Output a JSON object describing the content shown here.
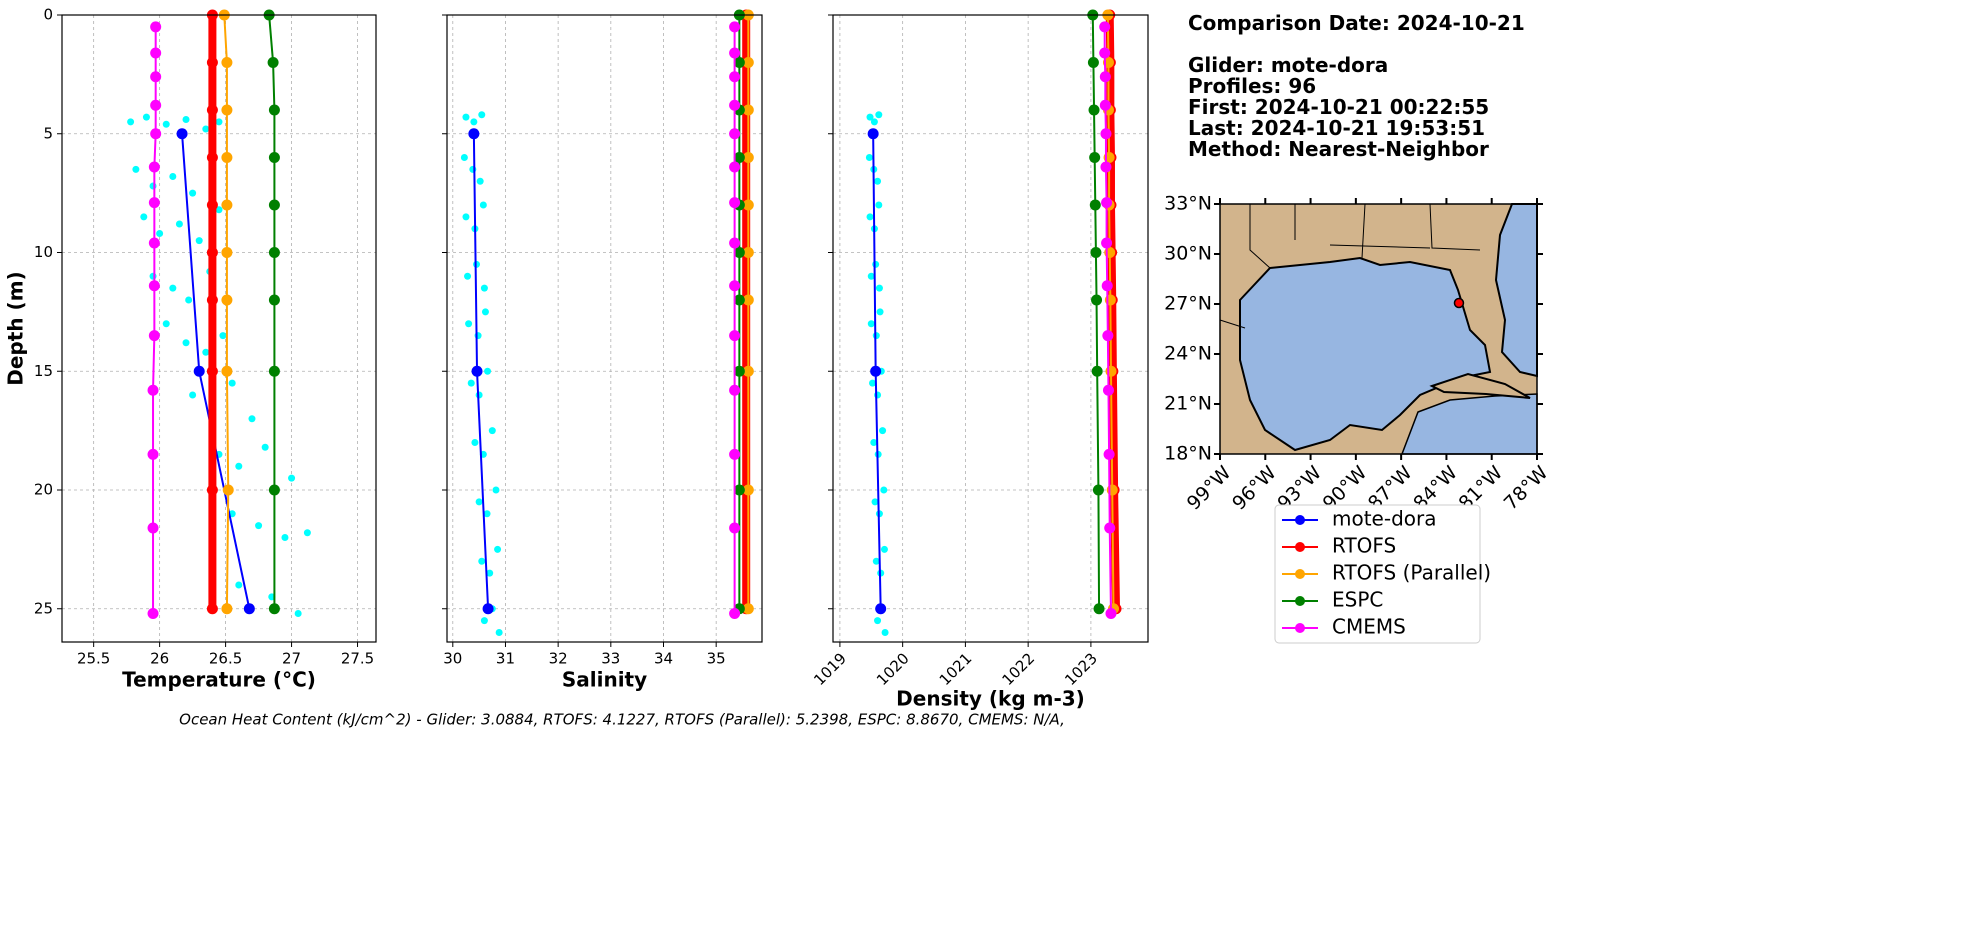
{
  "info": {
    "lines": [
      "Comparison Date: 2024-10-21",
      "Glider: mote-dora",
      "Profiles: 96",
      "First: 2024-10-21 00:22:55",
      "Last: 2024-10-21 19:53:51",
      "Method: Nearest-Neighbor"
    ]
  },
  "footer": "Ocean Heat Content (kJ/cm^2) - Glider: 3.0884,  RTOFS: 4.1227,  RTOFS (Parallel): 5.2398,  ESPC: 8.8670,  CMEMS: N/A,",
  "chart_data": [
    {
      "type": "line",
      "xlabel": "Temperature (°C)",
      "ylabel": "Depth (m)",
      "grid": true,
      "yinvert": true,
      "xlim": [
        25.26,
        27.64
      ],
      "xticks": [
        25.5,
        26.0,
        26.5,
        27.0,
        27.5
      ],
      "ylim": [
        0,
        26.4
      ],
      "yticks": [
        0,
        5,
        10,
        15,
        20,
        25
      ],
      "scatter": {
        "color": "#00ffff",
        "x": [
          25.78,
          25.9,
          26.05,
          26.2,
          26.35,
          26.45,
          25.82,
          25.95,
          26.1,
          26.25,
          26.4,
          25.88,
          26.0,
          26.15,
          26.3,
          26.45,
          25.95,
          26.1,
          26.22,
          26.38,
          26.05,
          26.2,
          26.35,
          26.48,
          26.25,
          26.4,
          26.55,
          26.7,
          26.45,
          26.6,
          26.8,
          27.0,
          26.55,
          26.75,
          26.95,
          27.12,
          26.6,
          26.85,
          27.05
        ],
        "y": [
          4.5,
          4.3,
          4.6,
          4.4,
          4.8,
          4.5,
          6.5,
          7.2,
          6.8,
          7.5,
          6.2,
          8.5,
          9.2,
          8.8,
          9.5,
          8.2,
          11,
          11.5,
          12,
          10.8,
          13,
          13.8,
          14.2,
          13.5,
          16,
          16.5,
          15.5,
          17,
          18.5,
          19,
          18.2,
          19.5,
          21,
          21.5,
          22,
          21.8,
          24,
          24.5,
          25.2
        ]
      },
      "series": [
        {
          "name": "mote-dora",
          "color": "#0000ff",
          "linewidth": 2,
          "depths": [
            5,
            15,
            25
          ],
          "values": [
            26.17,
            26.3,
            26.68
          ]
        },
        {
          "name": "RTOFS",
          "color": "#ff0000",
          "linewidth": 8,
          "depths": [
            0,
            2,
            4,
            6,
            8,
            10,
            12,
            15,
            20,
            25
          ],
          "values": [
            26.4,
            26.4,
            26.4,
            26.4,
            26.4,
            26.4,
            26.4,
            26.4,
            26.4,
            26.4
          ]
        },
        {
          "name": "RTOFS (Parallel)",
          "color": "#ffa500",
          "linewidth": 2,
          "depths": [
            0,
            2,
            4,
            6,
            8,
            10,
            12,
            15,
            20,
            25
          ],
          "values": [
            26.49,
            26.51,
            26.51,
            26.51,
            26.51,
            26.51,
            26.51,
            26.51,
            26.52,
            26.51
          ]
        },
        {
          "name": "ESPC",
          "color": "#008000",
          "linewidth": 2,
          "depths": [
            0,
            2,
            4,
            6,
            8,
            10,
            12,
            15,
            20,
            25
          ],
          "values": [
            26.83,
            26.86,
            26.87,
            26.87,
            26.87,
            26.87,
            26.87,
            26.87,
            26.87,
            26.87
          ]
        },
        {
          "name": "CMEMS",
          "color": "#ff00ff",
          "linewidth": 2,
          "depths": [
            0.5,
            1.6,
            2.6,
            3.8,
            5,
            6.4,
            7.9,
            9.6,
            11.4,
            13.5,
            15.8,
            18.5,
            21.6,
            25.2
          ],
          "values": [
            25.97,
            25.97,
            25.97,
            25.97,
            25.97,
            25.96,
            25.96,
            25.96,
            25.96,
            25.96,
            25.95,
            25.95,
            25.95,
            25.95
          ]
        }
      ]
    },
    {
      "type": "line",
      "xlabel": "Salinity",
      "grid": true,
      "yinvert": true,
      "xlim": [
        29.89,
        35.87
      ],
      "xticks": [
        30,
        31,
        32,
        33,
        34,
        35
      ],
      "ylim": [
        0,
        26.4
      ],
      "yticks": [
        0,
        5,
        10,
        15,
        20,
        25
      ],
      "scatter": {
        "color": "#00ffff",
        "x": [
          30.25,
          30.4,
          30.55,
          30.22,
          30.38,
          30.52,
          30.25,
          30.42,
          30.58,
          30.28,
          30.45,
          30.6,
          30.3,
          30.48,
          30.62,
          30.35,
          30.5,
          30.66,
          30.42,
          30.58,
          30.75,
          30.5,
          30.65,
          30.82,
          30.55,
          30.7,
          30.85,
          30.6,
          30.75,
          30.88
        ],
        "y": [
          4.3,
          4.5,
          4.2,
          6,
          6.5,
          7,
          8.5,
          9,
          8,
          11,
          10.5,
          11.5,
          13,
          13.5,
          12.5,
          15.5,
          16,
          15,
          18,
          18.5,
          17.5,
          20.5,
          21,
          20,
          23,
          23.5,
          22.5,
          25.5,
          25,
          26
        ]
      },
      "series": [
        {
          "color": "#0000ff",
          "linewidth": 2,
          "depths": [
            5,
            15,
            25
          ],
          "values": [
            30.4,
            30.46,
            30.67
          ]
        },
        {
          "color": "#ff0000",
          "linewidth": 8,
          "depths": [
            0,
            2,
            4,
            6,
            8,
            10,
            12,
            15,
            20,
            25
          ],
          "values": [
            35.57,
            35.57,
            35.57,
            35.57,
            35.57,
            35.57,
            35.57,
            35.57,
            35.57,
            35.57
          ]
        },
        {
          "color": "#ffa500",
          "linewidth": 2,
          "depths": [
            0,
            2,
            4,
            6,
            8,
            10,
            12,
            15,
            20,
            25
          ],
          "values": [
            35.61,
            35.61,
            35.61,
            35.61,
            35.61,
            35.61,
            35.61,
            35.61,
            35.61,
            35.61
          ]
        },
        {
          "color": "#008000",
          "linewidth": 2,
          "depths": [
            0,
            2,
            4,
            6,
            8,
            10,
            12,
            15,
            20,
            25
          ],
          "values": [
            35.44,
            35.44,
            35.44,
            35.44,
            35.44,
            35.44,
            35.44,
            35.44,
            35.44,
            35.44
          ]
        },
        {
          "color": "#ff00ff",
          "linewidth": 2,
          "depths": [
            0.5,
            1.6,
            2.6,
            3.8,
            5,
            6.4,
            7.9,
            9.6,
            11.4,
            13.5,
            15.8,
            18.5,
            21.6,
            25.2
          ],
          "values": [
            35.35,
            35.35,
            35.35,
            35.35,
            35.35,
            35.35,
            35.35,
            35.35,
            35.35,
            35.35,
            35.35,
            35.35,
            35.35,
            35.35
          ]
        }
      ]
    },
    {
      "type": "line",
      "xlabel": "Density (kg m-3)",
      "grid": true,
      "yinvert": true,
      "xtick_rotation": 45,
      "xlim": [
        1018.89,
        1023.91
      ],
      "xticks": [
        1019,
        1020,
        1021,
        1022,
        1023
      ],
      "ylim": [
        0,
        26.4
      ],
      "yticks": [
        0,
        5,
        10,
        15,
        20,
        25
      ],
      "scatter": {
        "color": "#00ffff",
        "x": [
          1019.48,
          1019.55,
          1019.62,
          1019.47,
          1019.54,
          1019.6,
          1019.48,
          1019.55,
          1019.62,
          1019.5,
          1019.57,
          1019.63,
          1019.5,
          1019.58,
          1019.64,
          1019.52,
          1019.6,
          1019.66,
          1019.54,
          1019.61,
          1019.68,
          1019.56,
          1019.63,
          1019.7,
          1019.58,
          1019.65,
          1019.71,
          1019.6,
          1019.67,
          1019.72
        ],
        "y": [
          4.3,
          4.5,
          4.2,
          6,
          6.5,
          7,
          8.5,
          9,
          8,
          11,
          10.5,
          11.5,
          13,
          13.5,
          12.5,
          15.5,
          16,
          15,
          18,
          18.5,
          17.5,
          20.5,
          21,
          20,
          23,
          23.5,
          22.5,
          25.5,
          25,
          26
        ]
      },
      "series": [
        {
          "color": "#0000ff",
          "linewidth": 2,
          "depths": [
            5,
            15,
            25
          ],
          "values": [
            1019.53,
            1019.57,
            1019.65
          ]
        },
        {
          "color": "#ff0000",
          "linewidth": 8,
          "depths": [
            0,
            2,
            4,
            6,
            8,
            10,
            12,
            15,
            20,
            25
          ],
          "values": [
            1023.3,
            1023.31,
            1023.31,
            1023.32,
            1023.32,
            1023.33,
            1023.34,
            1023.35,
            1023.37,
            1023.4
          ]
        },
        {
          "color": "#ffa500",
          "linewidth": 2,
          "depths": [
            0,
            2,
            4,
            6,
            8,
            10,
            12,
            15,
            20,
            25
          ],
          "values": [
            1023.27,
            1023.28,
            1023.28,
            1023.29,
            1023.29,
            1023.3,
            1023.31,
            1023.32,
            1023.34,
            1023.36
          ]
        },
        {
          "color": "#008000",
          "linewidth": 2,
          "depths": [
            0,
            2,
            4,
            6,
            8,
            10,
            12,
            15,
            20,
            25
          ],
          "values": [
            1023.03,
            1023.04,
            1023.05,
            1023.06,
            1023.07,
            1023.08,
            1023.09,
            1023.1,
            1023.12,
            1023.13
          ]
        },
        {
          "color": "#ff00ff",
          "linewidth": 2,
          "depths": [
            0.5,
            1.6,
            2.6,
            3.8,
            5,
            6.4,
            7.9,
            9.6,
            11.4,
            13.5,
            15.8,
            18.5,
            21.6,
            25.2
          ],
          "values": [
            1023.22,
            1023.22,
            1023.23,
            1023.23,
            1023.24,
            1023.24,
            1023.25,
            1023.25,
            1023.26,
            1023.27,
            1023.28,
            1023.29,
            1023.3,
            1023.32
          ]
        }
      ]
    }
  ],
  "map": {
    "lonlim": [
      -99,
      -78
    ],
    "latlim": [
      18,
      33
    ],
    "lon_ticks": [
      {
        "value": -99,
        "label": "99°W"
      },
      {
        "value": -96,
        "label": "96°W"
      },
      {
        "value": -93,
        "label": "93°W"
      },
      {
        "value": -90,
        "label": "90°W"
      },
      {
        "value": -87,
        "label": "87°W"
      },
      {
        "value": -84,
        "label": "84°W"
      },
      {
        "value": -81,
        "label": "81°W"
      },
      {
        "value": -78,
        "label": "78°W"
      }
    ],
    "lat_ticks": [
      {
        "value": 18,
        "label": "18°N"
      },
      {
        "value": 21,
        "label": "21°N"
      },
      {
        "value": 24,
        "label": "24°N"
      },
      {
        "value": 27,
        "label": "27°N"
      },
      {
        "value": 30,
        "label": "30°N"
      },
      {
        "value": 33,
        "label": "33°N"
      }
    ],
    "glider": {
      "lon": -83.17,
      "lat": 27.06,
      "color": "#ff0000"
    }
  }
}
